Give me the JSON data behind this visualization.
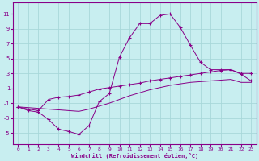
{
  "xlabel": "Windchill (Refroidissement éolien,°C)",
  "bg_color": "#c8eef0",
  "grid_color": "#a8d8da",
  "line_color": "#880088",
  "x_ticks": [
    0,
    1,
    2,
    3,
    4,
    5,
    6,
    7,
    8,
    9,
    10,
    11,
    12,
    13,
    14,
    15,
    16,
    17,
    18,
    19,
    20,
    21,
    22,
    23
  ],
  "y_ticks": [
    -5,
    -3,
    -1,
    1,
    3,
    5,
    7,
    9,
    11
  ],
  "xlim": [
    -0.5,
    23.5
  ],
  "ylim": [
    -6.5,
    12.5
  ],
  "curve1_x": [
    0,
    1,
    2,
    3,
    4,
    5,
    6,
    7,
    8,
    9,
    10,
    11,
    12,
    13,
    14,
    15,
    16,
    17,
    18,
    19,
    20,
    21,
    22,
    23
  ],
  "curve1_y": [
    -1.5,
    -2.0,
    -2.2,
    -3.2,
    -4.5,
    -4.8,
    -5.2,
    -4.0,
    -0.8,
    0.3,
    5.2,
    7.8,
    9.7,
    9.7,
    10.8,
    11.0,
    9.2,
    6.8,
    4.5,
    3.5,
    3.5,
    3.5,
    3.0,
    3.0
  ],
  "curve2_x": [
    0,
    1,
    2,
    3,
    4,
    5,
    6,
    7,
    8,
    9,
    10,
    11,
    12,
    13,
    14,
    15,
    16,
    17,
    18,
    19,
    20,
    21,
    22,
    23
  ],
  "curve2_y": [
    -1.5,
    -1.8,
    -2.0,
    -0.5,
    -0.2,
    -0.1,
    0.1,
    0.5,
    0.9,
    1.1,
    1.3,
    1.5,
    1.7,
    2.0,
    2.2,
    2.4,
    2.6,
    2.8,
    3.0,
    3.2,
    3.4,
    3.5,
    2.9,
    2.0
  ],
  "curve3_x": [
    0,
    1,
    2,
    3,
    4,
    5,
    6,
    7,
    8,
    9,
    10,
    11,
    12,
    13,
    14,
    15,
    16,
    17,
    18,
    19,
    20,
    21,
    22,
    23
  ],
  "curve3_y": [
    -1.5,
    -1.6,
    -1.7,
    -1.8,
    -1.9,
    -2.0,
    -2.1,
    -1.8,
    -1.4,
    -1.0,
    -0.5,
    0.0,
    0.4,
    0.8,
    1.1,
    1.4,
    1.6,
    1.8,
    1.9,
    2.0,
    2.1,
    2.2,
    1.8,
    1.8
  ]
}
